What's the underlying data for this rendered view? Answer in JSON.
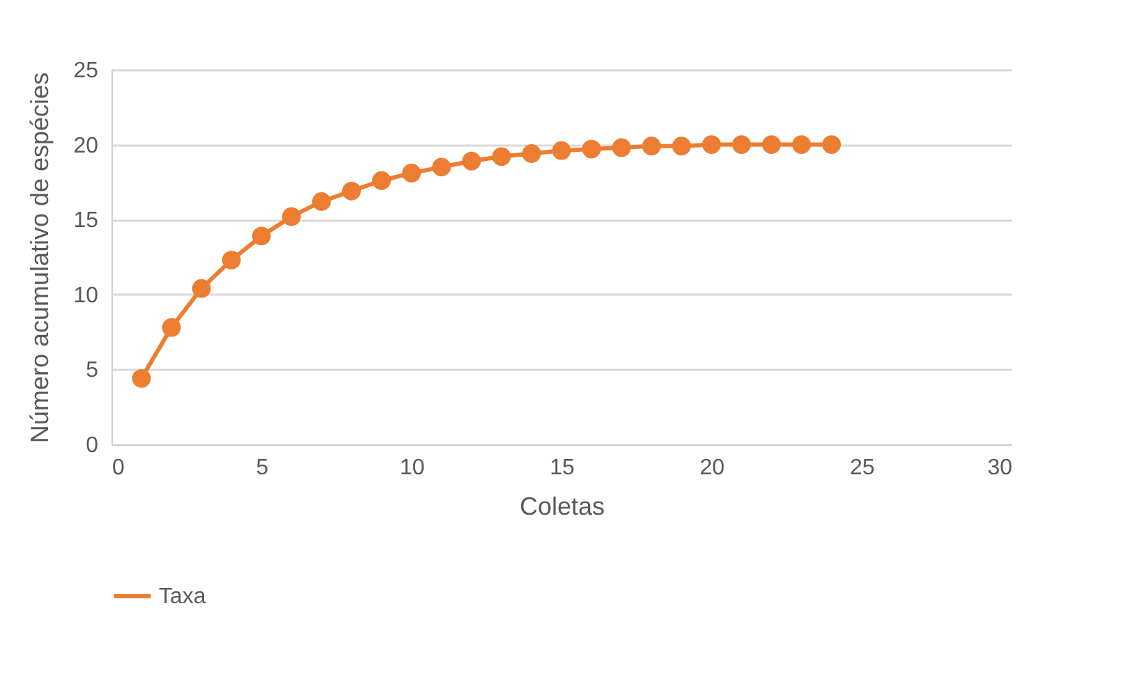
{
  "chart_data": {
    "type": "line",
    "xlabel": "Coletas",
    "ylabel": "Número acumulativo de espécies",
    "x": [
      1,
      2,
      3,
      4,
      5,
      6,
      7,
      8,
      9,
      10,
      11,
      12,
      13,
      14,
      15,
      16,
      17,
      18,
      19,
      20,
      21,
      22,
      23,
      24
    ],
    "series": [
      {
        "name": "Taxa",
        "color": "#ed7d31",
        "values": [
          4.4,
          7.8,
          10.4,
          12.3,
          13.9,
          15.2,
          16.2,
          16.9,
          17.6,
          18.1,
          18.5,
          18.9,
          19.2,
          19.4,
          19.6,
          19.7,
          19.8,
          19.9,
          19.9,
          20,
          20,
          20,
          20,
          20
        ]
      }
    ],
    "xlim": [
      0,
      30
    ],
    "xticks": [
      0,
      5,
      10,
      15,
      20,
      25,
      30
    ],
    "ylim": [
      0,
      25
    ],
    "yticks": [
      0,
      5,
      10,
      15,
      20,
      25
    ],
    "grid": "y",
    "legend": "bottom",
    "marker": "circle",
    "line_style": "solid"
  }
}
